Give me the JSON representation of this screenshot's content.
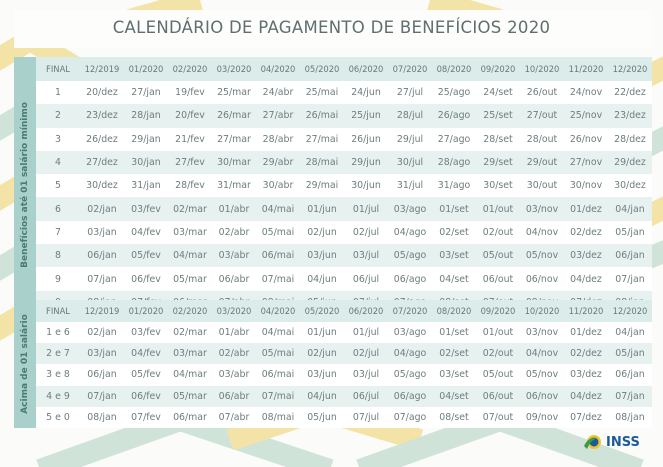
{
  "title": "CALENDÁRIO DE PAGAMENTO DE BENEFÍCIOS 2020",
  "colors": {
    "accent_teal": "#a9d0ca",
    "header_row": "#dcecea",
    "alt_row": "#e7f2f0",
    "chevron_yellow": "#f4e3a6",
    "chevron_green": "#cfe3d8",
    "logo_blue": "#1c5a9a"
  },
  "logo": {
    "text": "INSS",
    "icon": "inss-logo-icon"
  },
  "headers": [
    "FINAL",
    "12/2019",
    "01/2020",
    "02/2020",
    "03/2020",
    "04/2020",
    "05/2020",
    "06/2020",
    "07/2020",
    "08/2020",
    "09/2020",
    "10/2020",
    "11/2020",
    "12/2020"
  ],
  "table1": {
    "label": "Benefícios até 01 salário mínimo",
    "rows": [
      [
        "1",
        "20/dez",
        "27/jan",
        "19/fev",
        "25/mar",
        "24/abr",
        "25/mai",
        "24/jun",
        "27/jul",
        "25/ago",
        "24/set",
        "26/out",
        "24/nov",
        "22/dez"
      ],
      [
        "2",
        "23/dez",
        "28/jan",
        "20/fev",
        "26/mar",
        "27/abr",
        "26/mai",
        "25/jun",
        "28/jul",
        "26/ago",
        "25/set",
        "27/out",
        "25/nov",
        "23/dez"
      ],
      [
        "3",
        "26/dez",
        "29/jan",
        "21/fev",
        "27/mar",
        "28/abr",
        "27/mai",
        "26/jun",
        "29/jul",
        "27/ago",
        "28/set",
        "28/out",
        "26/nov",
        "28/dez"
      ],
      [
        "4",
        "27/dez",
        "30/jan",
        "27/fev",
        "30/mar",
        "29/abr",
        "28/mai",
        "29/jun",
        "30/jul",
        "28/ago",
        "29/set",
        "29/out",
        "27/nov",
        "29/dez"
      ],
      [
        "5",
        "30/dez",
        "31/jan",
        "28/fev",
        "31/mar",
        "30/abr",
        "29/mai",
        "30/jun",
        "31/jul",
        "31/ago",
        "30/set",
        "30/out",
        "30/nov",
        "30/dez"
      ],
      [
        "6",
        "02/jan",
        "03/fev",
        "02/mar",
        "01/abr",
        "04/mai",
        "01/jun",
        "01/jul",
        "03/ago",
        "01/set",
        "01/out",
        "03/nov",
        "01/dez",
        "04/jan"
      ],
      [
        "7",
        "03/jan",
        "04/fev",
        "03/mar",
        "02/abr",
        "05/mai",
        "02/jun",
        "02/jul",
        "04/ago",
        "02/set",
        "02/out",
        "04/nov",
        "02/dez",
        "05/jan"
      ],
      [
        "8",
        "06/jan",
        "05/fev",
        "04/mar",
        "03/abr",
        "06/mai",
        "03/jun",
        "03/jul",
        "05/ago",
        "03/set",
        "05/out",
        "05/nov",
        "03/dez",
        "06/jan"
      ],
      [
        "9",
        "07/jan",
        "06/fev",
        "05/mar",
        "06/abr",
        "07/mai",
        "04/jun",
        "06/jul",
        "06/ago",
        "04/set",
        "06/out",
        "06/nov",
        "04/dez",
        "07/jan"
      ],
      [
        "0",
        "08/jan",
        "07/fev",
        "06/mar",
        "07/abr",
        "08/mai",
        "05/jun",
        "07/jul",
        "07/ago",
        "08/set",
        "07/out",
        "09/nov",
        "07/dez",
        "08/jan"
      ]
    ]
  },
  "table2": {
    "label": "Acima de 01 salário",
    "rows": [
      [
        "1 e 6",
        "02/jan",
        "03/fev",
        "02/mar",
        "01/abr",
        "04/mai",
        "01/jun",
        "01/jul",
        "03/ago",
        "01/set",
        "01/out",
        "03/nov",
        "01/dez",
        "04/jan"
      ],
      [
        "2 e 7",
        "03/jan",
        "04/fev",
        "03/mar",
        "02/abr",
        "05/mai",
        "02/jun",
        "02/jul",
        "04/ago",
        "02/set",
        "02/out",
        "04/nov",
        "02/dez",
        "05/jan"
      ],
      [
        "3 e 8",
        "06/jan",
        "05/fev",
        "04/mar",
        "03/abr",
        "06/mai",
        "03/jun",
        "03/jul",
        "05/ago",
        "03/set",
        "05/out",
        "05/nov",
        "03/dez",
        "06/jan"
      ],
      [
        "4 e 9",
        "07/jan",
        "06/fev",
        "05/mar",
        "06/abr",
        "07/mai",
        "04/jun",
        "06/jul",
        "06/ago",
        "04/set",
        "06/out",
        "06/nov",
        "04/dez",
        "07/jan"
      ],
      [
        "5 e 0",
        "08/jan",
        "07/fev",
        "06/mar",
        "07/abr",
        "08/mai",
        "05/jun",
        "07/jul",
        "07/ago",
        "08/set",
        "07/out",
        "09/nov",
        "07/dez",
        "08/jan"
      ]
    ]
  }
}
